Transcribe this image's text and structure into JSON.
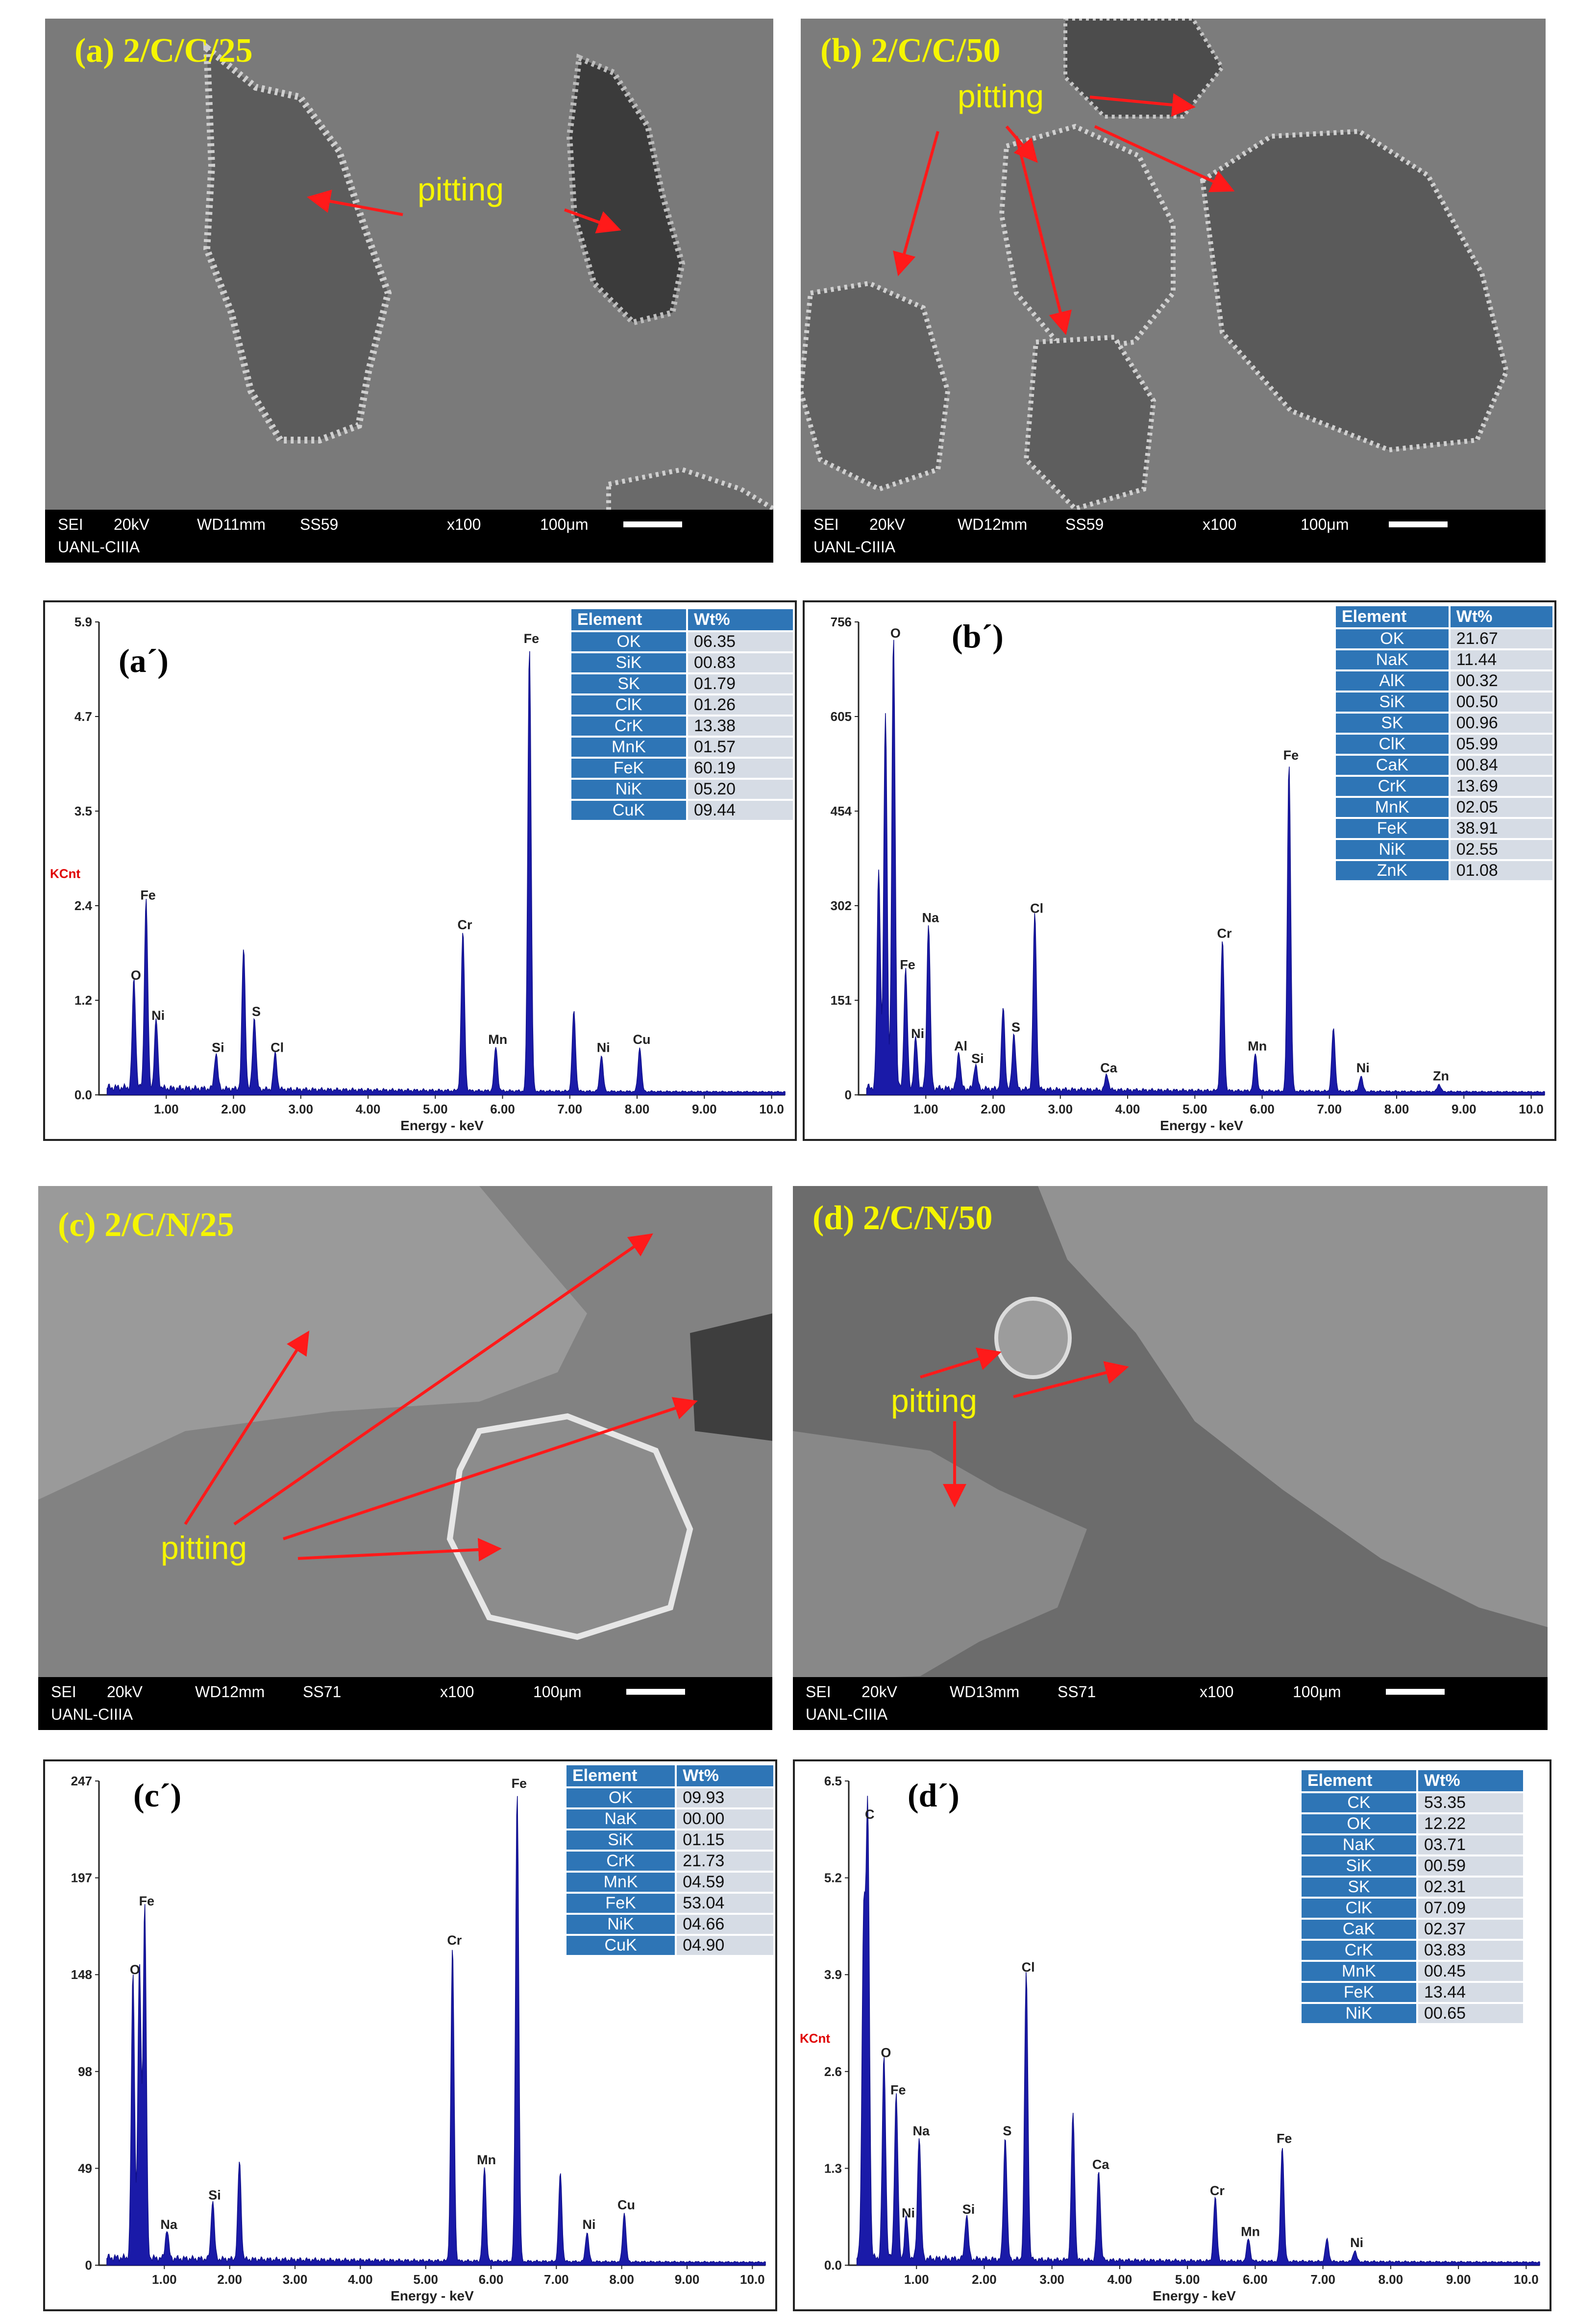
{
  "sem": {
    "a": {
      "title": "(a) 2/C/C/25",
      "pitting": "pitting",
      "footer": {
        "sei": "SEI",
        "kv": "20kV",
        "wd": "WD11mm",
        "ss": "SS59",
        "mag": "x100",
        "scale": "100μm",
        "lab": "UANL-CIIIA"
      }
    },
    "b": {
      "title": "(b) 2/C/C/50",
      "pitting": "pitting",
      "footer": {
        "sei": "SEI",
        "kv": "20kV",
        "wd": "WD12mm",
        "ss": "SS59",
        "mag": "x100",
        "scale": "100μm",
        "lab": "UANL-CIIIA"
      }
    },
    "c": {
      "title": "(c) 2/C/N/25",
      "pitting": "pitting",
      "footer": {
        "sei": "SEI",
        "kv": "20kV",
        "wd": "WD12mm",
        "ss": "SS71",
        "mag": "x100",
        "scale": "100μm",
        "lab": "UANL-CIIIA"
      }
    },
    "d": {
      "title": "(d) 2/C/N/50",
      "pitting": "pitting",
      "footer": {
        "sei": "SEI",
        "kv": "20kV",
        "wd": "WD13mm",
        "ss": "SS71",
        "mag": "x100",
        "scale": "100μm",
        "lab": "UANL-CIIIA"
      }
    }
  },
  "table_headers": {
    "element": "Element",
    "wt": "Wt%"
  },
  "chart_data": [
    {
      "type": "line",
      "label": "(a´)",
      "ylabel_text": "KCnt",
      "xlabel": "Energy - keV",
      "xlim": [
        0,
        10.2
      ],
      "ylim": [
        0,
        5.9
      ],
      "x_ticks": [
        "1.00",
        "2.00",
        "3.00",
        "4.00",
        "5.00",
        "6.00",
        "7.00",
        "8.00",
        "9.00",
        "10.0"
      ],
      "y_ticks": [
        "0.0",
        "1.2",
        "2.4",
        "3.5",
        "4.7",
        "5.9"
      ],
      "peaks": [
        {
          "label": "O",
          "x": 0.52,
          "y": 1.35
        },
        {
          "label": "Fe",
          "x": 0.7,
          "y": 2.35
        },
        {
          "label": "Ni",
          "x": 0.85,
          "y": 0.85
        },
        {
          "label": "Si",
          "x": 1.74,
          "y": 0.45
        },
        {
          "label": "S",
          "x": 2.31,
          "y": 0.9
        },
        {
          "label": "Cl",
          "x": 2.62,
          "y": 0.45
        },
        {
          "label": "Cr",
          "x": 5.41,
          "y": 1.98
        },
        {
          "label": "Mn",
          "x": 5.9,
          "y": 0.55
        },
        {
          "label": "Fe",
          "x": 6.4,
          "y": 5.55
        },
        {
          "label": "Ni",
          "x": 7.47,
          "y": 0.45
        },
        {
          "label": "Cu",
          "x": 8.04,
          "y": 0.55
        }
      ],
      "extra_peaks": [
        {
          "x": 2.15,
          "y": 1.75
        },
        {
          "x": 7.06,
          "y": 1.0
        }
      ],
      "table": [
        {
          "element": "OK",
          "wt": "06.35"
        },
        {
          "element": "SiK",
          "wt": "00.83"
        },
        {
          "element": "SK",
          "wt": "01.79"
        },
        {
          "element": "ClK",
          "wt": "01.26"
        },
        {
          "element": "CrK",
          "wt": "13.38"
        },
        {
          "element": "MnK",
          "wt": "01.57"
        },
        {
          "element": "FeK",
          "wt": "60.19"
        },
        {
          "element": "NiK",
          "wt": "05.20"
        },
        {
          "element": "CuK",
          "wt": "09.44"
        }
      ]
    },
    {
      "type": "line",
      "label": "(b´)",
      "ylabel_text": "",
      "xlabel": "Energy - keV",
      "xlim": [
        0,
        10.2
      ],
      "ylim": [
        0,
        756
      ],
      "x_ticks": [
        "1.00",
        "2.00",
        "3.00",
        "4.00",
        "5.00",
        "6.00",
        "7.00",
        "8.00",
        "9.00",
        "10.0"
      ],
      "y_ticks": [
        "0",
        "151",
        "302",
        "454",
        "605",
        "756"
      ],
      "peaks": [
        {
          "label": "O",
          "x": 0.52,
          "y": 720
        },
        {
          "label": "Fe",
          "x": 0.7,
          "y": 190
        },
        {
          "label": "Na",
          "x": 1.04,
          "y": 265
        },
        {
          "label": "Ni",
          "x": 0.85,
          "y": 80
        },
        {
          "label": "Al",
          "x": 1.49,
          "y": 60
        },
        {
          "label": "Si",
          "x": 1.74,
          "y": 40
        },
        {
          "label": "S",
          "x": 2.31,
          "y": 90
        },
        {
          "label": "Cl",
          "x": 2.62,
          "y": 280
        },
        {
          "label": "Ca",
          "x": 3.69,
          "y": 25
        },
        {
          "label": "Cr",
          "x": 5.41,
          "y": 240
        },
        {
          "label": "Mn",
          "x": 5.9,
          "y": 60
        },
        {
          "label": "Fe",
          "x": 6.4,
          "y": 525
        },
        {
          "label": "Ni",
          "x": 7.47,
          "y": 25
        },
        {
          "label": "Zn",
          "x": 8.63,
          "y": 12
        }
      ],
      "extra_peaks": [
        {
          "x": 0.4,
          "y": 600
        },
        {
          "x": 0.3,
          "y": 350
        },
        {
          "x": 2.15,
          "y": 130
        },
        {
          "x": 7.06,
          "y": 100
        }
      ],
      "table": [
        {
          "element": "OK",
          "wt": "21.67"
        },
        {
          "element": "NaK",
          "wt": "11.44"
        },
        {
          "element": "AlK",
          "wt": "00.32"
        },
        {
          "element": "SiK",
          "wt": "00.50"
        },
        {
          "element": "SK",
          "wt": "00.96"
        },
        {
          "element": "ClK",
          "wt": "05.99"
        },
        {
          "element": "CaK",
          "wt": "00.84"
        },
        {
          "element": "CrK",
          "wt": "13.69"
        },
        {
          "element": "MnK",
          "wt": "02.05"
        },
        {
          "element": "FeK",
          "wt": "38.91"
        },
        {
          "element": "NiK",
          "wt": "02.55"
        },
        {
          "element": "ZnK",
          "wt": "01.08"
        }
      ]
    },
    {
      "type": "line",
      "label": "(c´)",
      "ylabel_text": "",
      "xlabel": "Energy - keV",
      "xlim": [
        0,
        10.2
      ],
      "ylim": [
        0,
        247
      ],
      "x_ticks": [
        "1.00",
        "2.00",
        "3.00",
        "4.00",
        "5.00",
        "6.00",
        "7.00",
        "8.00",
        "9.00",
        "10.0"
      ],
      "y_ticks": [
        "0",
        "49",
        "98",
        "148",
        "197",
        "247"
      ],
      "peaks": [
        {
          "label": "O",
          "x": 0.52,
          "y": 145
        },
        {
          "label": "Fe",
          "x": 0.7,
          "y": 180
        },
        {
          "label": "Na",
          "x": 1.04,
          "y": 15
        },
        {
          "label": "Si",
          "x": 1.74,
          "y": 30
        },
        {
          "label": "Cr",
          "x": 5.41,
          "y": 160
        },
        {
          "label": "Mn",
          "x": 5.9,
          "y": 48
        },
        {
          "label": "Fe",
          "x": 6.4,
          "y": 240
        },
        {
          "label": "Ni",
          "x": 7.47,
          "y": 15
        },
        {
          "label": "Cu",
          "x": 8.04,
          "y": 25
        }
      ],
      "extra_peaks": [
        {
          "x": 0.62,
          "y": 150
        },
        {
          "x": 2.15,
          "y": 50
        },
        {
          "x": 7.06,
          "y": 45
        }
      ],
      "table": [
        {
          "element": "OK",
          "wt": "09.93"
        },
        {
          "element": "NaK",
          "wt": "00.00"
        },
        {
          "element": "SiK",
          "wt": "01.15"
        },
        {
          "element": "CrK",
          "wt": "21.73"
        },
        {
          "element": "MnK",
          "wt": "04.59"
        },
        {
          "element": "FeK",
          "wt": "53.04"
        },
        {
          "element": "NiK",
          "wt": "04.66"
        },
        {
          "element": "CuK",
          "wt": "04.90"
        }
      ]
    },
    {
      "type": "line",
      "label": "(d´)",
      "ylabel_text": "KCnt",
      "xlabel": "Energy - keV",
      "xlim": [
        0,
        10.2
      ],
      "ylim": [
        0,
        6.5
      ],
      "x_ticks": [
        "1.00",
        "2.00",
        "3.00",
        "4.00",
        "5.00",
        "6.00",
        "7.00",
        "8.00",
        "9.00",
        "10.0"
      ],
      "y_ticks": [
        "0.0",
        "1.3",
        "2.6",
        "3.9",
        "5.2",
        "6.5"
      ],
      "peaks": [
        {
          "label": "C",
          "x": 0.28,
          "y": 5.9
        },
        {
          "label": "O",
          "x": 0.52,
          "y": 2.7
        },
        {
          "label": "Fe",
          "x": 0.7,
          "y": 2.2
        },
        {
          "label": "Na",
          "x": 1.04,
          "y": 1.65
        },
        {
          "label": "Ni",
          "x": 0.85,
          "y": 0.55
        },
        {
          "label": "Si",
          "x": 1.74,
          "y": 0.6
        },
        {
          "label": "S",
          "x": 2.31,
          "y": 1.65
        },
        {
          "label": "Cl",
          "x": 2.62,
          "y": 3.85
        },
        {
          "label": "Ca",
          "x": 3.69,
          "y": 1.2
        },
        {
          "label": "Cr",
          "x": 5.41,
          "y": 0.85
        },
        {
          "label": "Mn",
          "x": 5.9,
          "y": 0.3
        },
        {
          "label": "Fe",
          "x": 6.4,
          "y": 1.55
        },
        {
          "label": "Ni",
          "x": 7.47,
          "y": 0.15
        }
      ],
      "extra_peaks": [
        {
          "x": 0.22,
          "y": 4.5
        },
        {
          "x": 3.31,
          "y": 1.95
        },
        {
          "x": 7.06,
          "y": 0.3
        }
      ],
      "table": [
        {
          "element": "CK",
          "wt": "53.35"
        },
        {
          "element": "OK",
          "wt": "12.22"
        },
        {
          "element": "NaK",
          "wt": "03.71"
        },
        {
          "element": "SiK",
          "wt": "00.59"
        },
        {
          "element": "SK",
          "wt": "02.31"
        },
        {
          "element": "ClK",
          "wt": "07.09"
        },
        {
          "element": "CaK",
          "wt": "02.37"
        },
        {
          "element": "CrK",
          "wt": "03.83"
        },
        {
          "element": "MnK",
          "wt": "00.45"
        },
        {
          "element": "FeK",
          "wt": "13.44"
        },
        {
          "element": "NiK",
          "wt": "00.65"
        }
      ]
    }
  ]
}
